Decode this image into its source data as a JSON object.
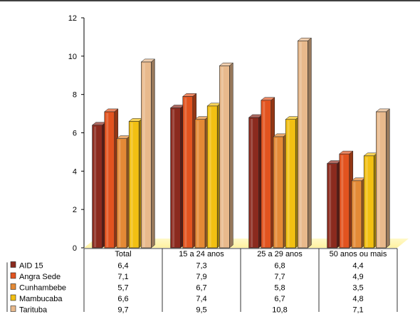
{
  "chart_data": {
    "type": "bar",
    "categories": [
      "Total",
      "15 a 24 anos",
      "25 a 29 anos",
      "50 anos ou mais"
    ],
    "series": [
      {
        "name": "AID 15",
        "values": [
          6.4,
          7.3,
          6.8,
          4.4
        ],
        "labels": [
          "6,4",
          "7,3",
          "6,8",
          "4,4"
        ],
        "color": "#8B2A1E"
      },
      {
        "name": "Angra Sede",
        "values": [
          7.1,
          7.9,
          7.7,
          4.9
        ],
        "labels": [
          "7,1",
          "7,9",
          "7,7",
          "4,9"
        ],
        "color": "#E2531F"
      },
      {
        "name": "Cunhambebe",
        "values": [
          5.7,
          6.7,
          5.8,
          3.5
        ],
        "labels": [
          "5,7",
          "6,7",
          "5,8",
          "3,5"
        ],
        "color": "#E48A36"
      },
      {
        "name": "Mambucaba",
        "values": [
          6.6,
          7.4,
          6.7,
          4.8
        ],
        "labels": [
          "6,6",
          "7,4",
          "6,7",
          "4,8"
        ],
        "color": "#F2C012"
      },
      {
        "name": "Tarituba",
        "values": [
          9.7,
          9.5,
          10.8,
          7.1
        ],
        "labels": [
          "9,7",
          "9,5",
          "10,8",
          "7,1"
        ],
        "color": "#E8B98C"
      }
    ],
    "y_ticks": [
      "0",
      "2",
      "4",
      "6",
      "8",
      "10",
      "12"
    ],
    "ylim": [
      0,
      12
    ],
    "grid": false,
    "legend": "data-table-below"
  }
}
